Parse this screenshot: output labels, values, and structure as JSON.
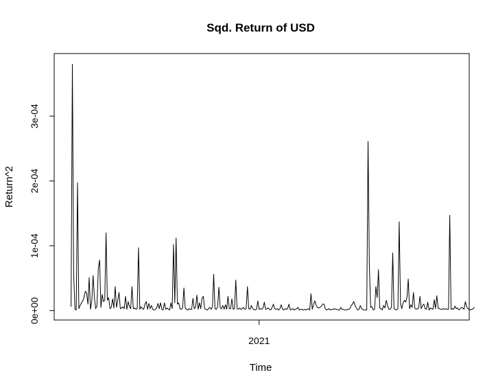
{
  "chart_data": {
    "type": "line",
    "title": "Sqd. Return of USD",
    "xlabel": "Time",
    "ylabel": "Return^2",
    "x_ticks": [
      {
        "label": "2021",
        "index": 158
      }
    ],
    "y_ticks": [
      {
        "label": "0e+00",
        "value": 0
      },
      {
        "label": "1e-04",
        "value": 0.0001
      },
      {
        "label": "2e-04",
        "value": 0.0002
      },
      {
        "label": "3e-04",
        "value": 0.0003
      }
    ],
    "x_index_range": [
      0,
      320
    ],
    "ylim": [
      -1.45e-05,
      0.0003965
    ],
    "grid": false,
    "legend": "none",
    "line_color": "#000000",
    "series": [
      {
        "values": [
          6e-06,
          0.00038,
          5.5e-05,
          2e-06,
          1e-06,
          0.000197,
          3e-06,
          8e-06,
          1.2e-05,
          1.5e-05,
          2e-05,
          3e-05,
          2.7e-05,
          1e-05,
          5.1e-05,
          2e-06,
          1.5e-05,
          5.4e-05,
          2e-05,
          3e-06,
          8e-06,
          6.5e-05,
          7.8e-05,
          5e-06,
          2.5e-05,
          1.4e-05,
          1.6e-05,
          0.00012,
          1.6e-05,
          2e-05,
          3e-06,
          5e-06,
          1.8e-05,
          4e-06,
          3.7e-05,
          5e-06,
          1.5e-05,
          2.8e-05,
          3e-06,
          4e-06,
          6e-06,
          3e-06,
          2.2e-05,
          2e-06,
          1.4e-05,
          6e-06,
          3e-06,
          3.7e-05,
          3e-06,
          4e-06,
          2e-06,
          3e-06,
          9.7e-05,
          2e-06,
          6e-06,
          3e-06,
          2e-06,
          1e-05,
          1.4e-05,
          2e-06,
          1.1e-05,
          3e-06,
          8e-06,
          2e-06,
          1e-06,
          2e-06,
          4e-06,
          1.1e-05,
          3e-06,
          1.2e-05,
          2e-06,
          1e-06,
          1.2e-05,
          2e-06,
          4e-06,
          2e-06,
          1e-06,
          1.2e-05,
          3e-06,
          0.000102,
          1.2e-05,
          0.000112,
          1e-05,
          1.2e-05,
          3e-06,
          2e-06,
          4e-06,
          3.5e-05,
          4e-06,
          2e-06,
          1e-06,
          3e-06,
          2e-06,
          2e-06,
          1.9e-05,
          3e-06,
          5e-06,
          2.4e-05,
          2e-06,
          1.2e-05,
          3e-06,
          1.9e-05,
          2.2e-05,
          3e-06,
          2e-06,
          1e-06,
          3e-06,
          5e-06,
          2e-06,
          6e-06,
          5.6e-05,
          3e-06,
          2e-06,
          6e-06,
          3.6e-05,
          4e-06,
          3e-06,
          8e-06,
          2e-06,
          9e-06,
          2e-06,
          2.2e-05,
          3e-06,
          3e-06,
          1.8e-05,
          2e-06,
          3e-06,
          4.7e-05,
          3e-06,
          2e-06,
          4e-06,
          2e-06,
          3e-06,
          5e-06,
          2e-06,
          3e-06,
          3.7e-05,
          3e-06,
          2e-06,
          8e-06,
          3e-06,
          2e-06,
          1e-06,
          2e-06,
          1.5e-05,
          2e-06,
          3e-06,
          2e-06,
          4e-06,
          1.3e-05,
          2e-06,
          3e-06,
          4e-06,
          2e-06,
          1e-06,
          5e-06,
          1e-05,
          3e-06,
          2e-06,
          3e-06,
          1e-06,
          3e-06,
          9e-06,
          2e-06,
          1e-06,
          3e-06,
          2e-06,
          3e-06,
          1e-05,
          1e-06,
          2e-06,
          3e-06,
          1e-06,
          2e-06,
          3e-06,
          5e-06,
          1e-06,
          2e-06,
          2e-06,
          1e-06,
          2e-06,
          1e-06,
          2e-06,
          3e-06,
          1e-06,
          2.6e-05,
          2e-06,
          1e-05,
          1.5e-05,
          8e-06,
          5e-06,
          4e-06,
          5e-06,
          7e-06,
          1e-05,
          1e-05,
          3e-06,
          1e-06,
          2e-06,
          3e-06,
          1e-06,
          2e-06,
          2e-06,
          3e-06,
          2e-06,
          2e-06,
          1e-06,
          1e-06,
          5e-06,
          2e-06,
          2e-06,
          1e-06,
          1e-06,
          2e-06,
          2e-06,
          3e-06,
          8e-06,
          1e-05,
          1.4e-05,
          8e-06,
          4e-06,
          1e-06,
          2e-06,
          8e-06,
          3e-06,
          2e-06,
          1e-06,
          1e-06,
          1e-06,
          0.000261,
          7e-05,
          5e-06,
          6e-06,
          1e-06,
          2e-06,
          3.7e-05,
          2e-05,
          6.3e-05,
          4e-06,
          3e-06,
          1e-06,
          8e-06,
          4e-06,
          1.6e-05,
          8e-06,
          2e-06,
          2e-06,
          5e-06,
          8.9e-05,
          3e-06,
          2e-06,
          1e-06,
          3e-06,
          0.000137,
          1.1e-05,
          3e-06,
          1.2e-05,
          1.6e-05,
          1.3e-05,
          2.1e-05,
          4.9e-05,
          3e-06,
          9e-06,
          5e-06,
          2.8e-05,
          4e-06,
          2e-06,
          3e-06,
          4e-06,
          2.2e-05,
          3e-06,
          8e-06,
          1e-05,
          3e-06,
          2e-06,
          1.3e-05,
          1e-06,
          4e-06,
          3e-06,
          2e-06,
          1.7e-05,
          3e-06,
          2.3e-05,
          4e-06,
          3e-06,
          2e-06,
          2e-06,
          3e-06,
          2e-06,
          3e-06,
          2e-06,
          2e-06,
          0.000147,
          2e-06,
          3e-06,
          2e-06,
          7e-06,
          3e-06,
          4e-06,
          1e-06,
          3e-06,
          5e-06,
          4e-06,
          2e-06,
          1.4e-05,
          6e-06,
          3e-06,
          2e-06,
          1e-06,
          2e-06,
          3e-06,
          5e-06
        ]
      }
    ]
  }
}
